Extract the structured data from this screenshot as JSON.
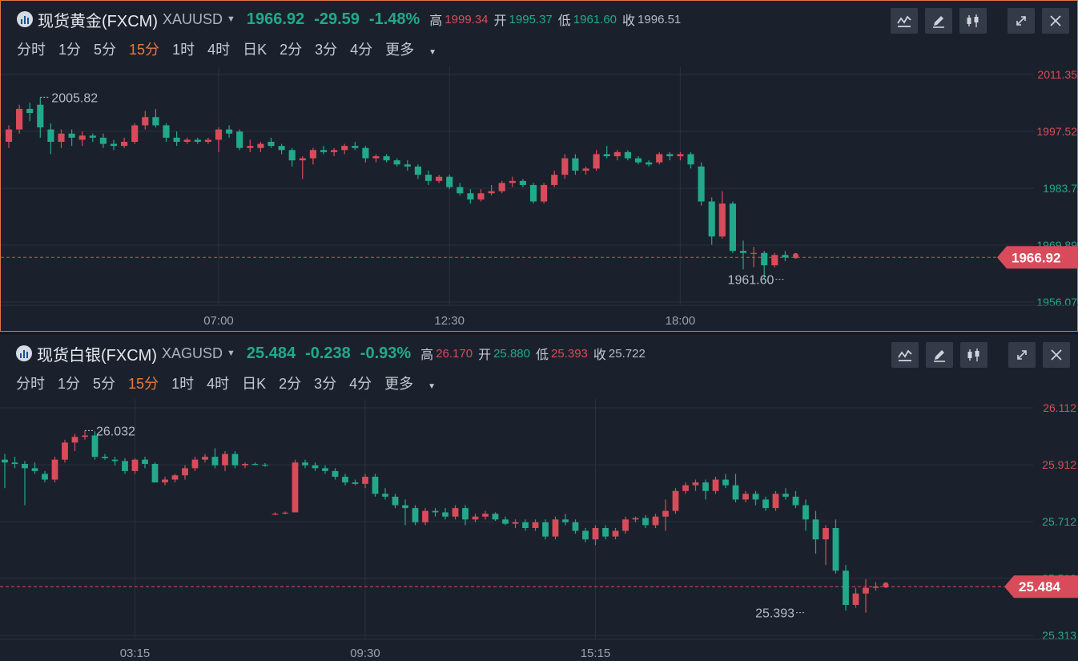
{
  "colors": {
    "up": "#d94b5a",
    "down": "#22a98b",
    "grid": "#2a313c",
    "panel": "#1b212c",
    "accent": "#e67a3f"
  },
  "gold": {
    "name": "现货黄金(FXCM)",
    "code": "XAUUSD",
    "caret": "▼",
    "price": "1966.92",
    "change": "-29.59",
    "change_pct": "-1.48%",
    "high_label": "高",
    "high": "1999.34",
    "open_label": "开",
    "open": "1995.37",
    "low_label": "低",
    "low": "1961.60",
    "close_label": "收",
    "close": "1996.51",
    "intervals": [
      "分时",
      "1分",
      "5分",
      "15分",
      "1时",
      "4时",
      "日K",
      "2分",
      "3分",
      "4分"
    ],
    "active_interval": "15分",
    "more": "更多",
    "tools": [
      "indicator-icon",
      "draw-icon",
      "candlestick-icon",
      "expand-icon",
      "close-icon"
    ]
  },
  "silver": {
    "name": "现货白银(FXCM)",
    "code": "XAGUSD",
    "caret": "▼",
    "price": "25.484",
    "change": "-0.238",
    "change_pct": "-0.93%",
    "high_label": "高",
    "high": "26.170",
    "open_label": "开",
    "open": "25.880",
    "low_label": "低",
    "low": "25.393",
    "close_label": "收",
    "close": "25.722",
    "intervals": [
      "分时",
      "1分",
      "5分",
      "15分",
      "1时",
      "4时",
      "日K",
      "2分",
      "3分",
      "4分"
    ],
    "active_interval": "15分",
    "more": "更多",
    "tools": [
      "indicator-icon",
      "draw-icon",
      "candlestick-icon",
      "expand-icon",
      "close-icon"
    ]
  },
  "chart_data": [
    {
      "type": "candlestick",
      "symbol": "XAUUSD",
      "interval": "15分",
      "y_ticks": [
        {
          "label": "2011.35",
          "value": 2011.35,
          "color": "#d94b5a"
        },
        {
          "label": "1997.52",
          "value": 1997.52,
          "color": "#d94b5a"
        },
        {
          "label": "1983.7",
          "value": 1983.7,
          "color": "#22a98b"
        },
        {
          "label": "1969.89",
          "value": 1969.89,
          "color": "#22a98b"
        },
        {
          "label": "1956.07",
          "value": 1956.07,
          "color": "#22a98b"
        }
      ],
      "x_ticks": [
        "07:00",
        "12:30",
        "18:00"
      ],
      "x_tick_candle_index": [
        20,
        42,
        64
      ],
      "last_price": 1966.92,
      "last_price_label": "1966.92",
      "annotations": [
        {
          "label": "2005.82",
          "candle_index": 3,
          "value": 2005.82
        },
        {
          "label": "1961.60",
          "candle_index": 74,
          "value": 1961.6
        }
      ],
      "candles": [
        [
          1995.0,
          1999.0,
          1993.5,
          1998.0
        ],
        [
          1998.0,
          2004.0,
          1997.0,
          2003.0
        ],
        [
          2003.0,
          2004.5,
          2000.0,
          2002.0
        ],
        [
          2004.0,
          2005.82,
          1996.0,
          1998.5
        ],
        [
          1998.0,
          1999.5,
          1992.0,
          1995.0
        ],
        [
          1995.0,
          1998.0,
          1993.5,
          1997.0
        ],
        [
          1997.0,
          1998.0,
          1994.0,
          1996.0
        ],
        [
          1995.5,
          1997.5,
          1994.0,
          1996.5
        ],
        [
          1996.5,
          1997.0,
          1995.0,
          1996.0
        ],
        [
          1996.0,
          1997.0,
          1993.5,
          1994.5
        ],
        [
          1994.5,
          1995.5,
          1993.0,
          1994.0
        ],
        [
          1994.0,
          1996.0,
          1993.5,
          1995.0
        ],
        [
          1995.0,
          1999.5,
          1994.5,
          1999.0
        ],
        [
          1999.0,
          2002.5,
          1998.0,
          2001.0
        ],
        [
          2001.0,
          2003.0,
          1998.5,
          1999.0
        ],
        [
          1999.0,
          1999.5,
          1995.0,
          1996.0
        ],
        [
          1996.0,
          1997.5,
          1994.0,
          1995.0
        ],
        [
          1995.0,
          1996.0,
          1994.5,
          1995.5
        ],
        [
          1995.5,
          1996.0,
          1994.5,
          1995.0
        ],
        [
          1995.0,
          1996.0,
          1994.5,
          1995.5
        ],
        [
          1995.5,
          1998.5,
          1992.5,
          1998.0
        ],
        [
          1998.0,
          1999.0,
          1996.0,
          1997.0
        ],
        [
          1997.5,
          1998.0,
          1993.0,
          1993.5
        ],
        [
          1993.5,
          1995.5,
          1992.5,
          1994.0
        ],
        [
          1993.5,
          1995.0,
          1992.5,
          1994.5
        ],
        [
          1995.0,
          1996.0,
          1993.5,
          1994.0
        ],
        [
          1994.0,
          1994.5,
          1992.0,
          1993.0
        ],
        [
          1993.0,
          1993.5,
          1989.0,
          1990.5
        ],
        [
          1990.5,
          1991.5,
          1986.0,
          1991.0
        ],
        [
          1991.0,
          1993.5,
          1989.5,
          1993.0
        ],
        [
          1993.0,
          1994.0,
          1992.0,
          1992.5
        ],
        [
          1992.5,
          1993.5,
          1991.5,
          1993.0
        ],
        [
          1993.0,
          1994.5,
          1992.0,
          1994.0
        ],
        [
          1994.0,
          1995.0,
          1993.0,
          1993.5
        ],
        [
          1993.5,
          1994.0,
          1990.0,
          1991.0
        ],
        [
          1991.0,
          1992.0,
          1990.0,
          1991.5
        ],
        [
          1991.5,
          1992.0,
          1990.0,
          1990.5
        ],
        [
          1990.5,
          1991.0,
          1989.0,
          1989.5
        ],
        [
          1989.5,
          1990.5,
          1988.0,
          1989.0
        ],
        [
          1989.0,
          1989.5,
          1986.0,
          1987.0
        ],
        [
          1987.0,
          1988.0,
          1984.5,
          1985.5
        ],
        [
          1985.5,
          1987.0,
          1985.0,
          1986.5
        ],
        [
          1986.5,
          1987.0,
          1983.5,
          1984.0
        ],
        [
          1984.0,
          1985.0,
          1982.0,
          1982.5
        ],
        [
          1982.5,
          1983.5,
          1980.0,
          1981.0
        ],
        [
          1981.0,
          1983.5,
          1980.5,
          1982.5
        ],
        [
          1982.5,
          1984.5,
          1982.0,
          1983.0
        ],
        [
          1983.0,
          1985.5,
          1982.5,
          1985.0
        ],
        [
          1985.0,
          1986.5,
          1984.0,
          1985.5
        ],
        [
          1985.5,
          1986.0,
          1984.0,
          1984.5
        ],
        [
          1984.5,
          1985.0,
          1980.0,
          1980.5
        ],
        [
          1980.5,
          1985.0,
          1980.0,
          1984.5
        ],
        [
          1984.5,
          1988.0,
          1984.0,
          1987.0
        ],
        [
          1987.0,
          1992.0,
          1986.0,
          1991.0
        ],
        [
          1991.0,
          1992.0,
          1987.0,
          1988.0
        ],
        [
          1988.0,
          1989.0,
          1987.0,
          1988.5
        ],
        [
          1988.5,
          1993.0,
          1988.0,
          1992.0
        ],
        [
          1992.0,
          1994.0,
          1991.0,
          1991.5
        ],
        [
          1991.5,
          1993.0,
          1990.5,
          1992.5
        ],
        [
          1992.5,
          1993.0,
          1990.5,
          1991.0
        ],
        [
          1991.0,
          1991.5,
          1989.5,
          1990.0
        ],
        [
          1990.0,
          1990.5,
          1989.0,
          1989.5
        ],
        [
          1990.0,
          1992.5,
          1989.5,
          1992.0
        ],
        [
          1992.0,
          1992.5,
          1990.5,
          1991.5
        ],
        [
          1991.5,
          1992.5,
          1990.5,
          1992.0
        ],
        [
          1992.0,
          1992.5,
          1988.5,
          1989.5
        ],
        [
          1989.0,
          1990.0,
          1979.5,
          1980.5
        ],
        [
          1980.5,
          1981.5,
          1970.0,
          1972.0
        ],
        [
          1972.0,
          1983.0,
          1971.5,
          1980.0
        ],
        [
          1980.0,
          1980.5,
          1968.0,
          1968.5
        ],
        [
          1968.5,
          1971.0,
          1964.0,
          1968.0
        ],
        [
          1968.0,
          1969.5,
          1964.5,
          1968.0
        ],
        [
          1968.0,
          1968.5,
          1961.6,
          1965.0
        ],
        [
          1965.0,
          1968.0,
          1964.5,
          1967.5
        ],
        [
          1967.5,
          1968.5,
          1966.0,
          1966.92
        ]
      ]
    },
    {
      "type": "candlestick",
      "symbol": "XAGUSD",
      "interval": "15分",
      "y_ticks": [
        {
          "label": "26.112",
          "value": 26.112,
          "color": "#d94b5a"
        },
        {
          "label": "25.912",
          "value": 25.912,
          "color": "#d94b5a"
        },
        {
          "label": "25.712",
          "value": 25.712,
          "color": "#22a98b"
        },
        {
          "label": "25.513",
          "value": 25.513,
          "color": "#22a98b"
        },
        {
          "label": "25.313",
          "value": 25.313,
          "color": "#22a98b"
        }
      ],
      "x_ticks": [
        "03:15",
        "09:30",
        "15:15"
      ],
      "x_tick_candle_index": [
        13,
        36,
        59
      ],
      "last_price": 25.484,
      "last_price_label": "25.484",
      "annotations": [
        {
          "label": "26.032",
          "candle_index": 8,
          "value": 26.032
        },
        {
          "label": "25.393",
          "candle_index": 80,
          "value": 25.393
        }
      ],
      "candles": [
        [
          25.93,
          25.95,
          25.83,
          25.92
        ],
        [
          25.92,
          25.94,
          25.9,
          25.915
        ],
        [
          25.915,
          25.925,
          25.77,
          25.9
        ],
        [
          25.9,
          25.92,
          25.88,
          25.89
        ],
        [
          25.88,
          25.89,
          25.85,
          25.86
        ],
        [
          25.86,
          25.94,
          25.85,
          25.93
        ],
        [
          25.93,
          26.0,
          25.92,
          25.99
        ],
        [
          25.99,
          26.02,
          25.96,
          26.01
        ],
        [
          26.01,
          26.032,
          26.0,
          26.015
        ],
        [
          26.015,
          26.03,
          25.93,
          25.94
        ],
        [
          25.94,
          25.95,
          25.93,
          25.935
        ],
        [
          25.93,
          25.94,
          25.91,
          25.925
        ],
        [
          25.925,
          25.935,
          25.88,
          25.89
        ],
        [
          25.89,
          25.935,
          25.88,
          25.93
        ],
        [
          25.93,
          25.94,
          25.9,
          25.915
        ],
        [
          25.915,
          25.92,
          25.85,
          25.85
        ],
        [
          25.85,
          25.87,
          25.84,
          25.86
        ],
        [
          25.86,
          25.88,
          25.85,
          25.875
        ],
        [
          25.875,
          25.91,
          25.86,
          25.9
        ],
        [
          25.9,
          25.94,
          25.89,
          25.93
        ],
        [
          25.93,
          25.95,
          25.92,
          25.94
        ],
        [
          25.94,
          25.97,
          25.9,
          25.91
        ],
        [
          25.91,
          25.96,
          25.89,
          25.95
        ],
        [
          25.95,
          25.96,
          25.9,
          25.91
        ],
        [
          25.91,
          25.92,
          25.9,
          25.915
        ],
        [
          25.915,
          25.92,
          25.91,
          25.912
        ],
        [
          25.912,
          25.918,
          25.905,
          25.91
        ],
        [
          25.74,
          25.745,
          25.735,
          25.74
        ],
        [
          25.742,
          25.748,
          25.738,
          25.744
        ],
        [
          25.745,
          25.93,
          25.745,
          25.92
        ],
        [
          25.92,
          25.93,
          25.9,
          25.91
        ],
        [
          25.91,
          25.92,
          25.89,
          25.9
        ],
        [
          25.9,
          25.91,
          25.88,
          25.89
        ],
        [
          25.89,
          25.9,
          25.86,
          25.87
        ],
        [
          25.87,
          25.88,
          25.84,
          25.85
        ],
        [
          25.85,
          25.86,
          25.84,
          25.845
        ],
        [
          25.845,
          25.88,
          25.83,
          25.87
        ],
        [
          25.87,
          25.88,
          25.8,
          25.81
        ],
        [
          25.81,
          25.83,
          25.79,
          25.8
        ],
        [
          25.8,
          25.81,
          25.76,
          25.77
        ],
        [
          25.77,
          25.79,
          25.7,
          25.76
        ],
        [
          25.76,
          25.77,
          25.7,
          25.71
        ],
        [
          25.71,
          25.76,
          25.7,
          25.75
        ],
        [
          25.75,
          25.76,
          25.73,
          25.745
        ],
        [
          25.745,
          25.76,
          25.72,
          25.73
        ],
        [
          25.73,
          25.77,
          25.72,
          25.76
        ],
        [
          25.76,
          25.77,
          25.7,
          25.72
        ],
        [
          25.72,
          25.74,
          25.71,
          25.73
        ],
        [
          25.73,
          25.75,
          25.72,
          25.74
        ],
        [
          25.74,
          25.745,
          25.715,
          25.72
        ],
        [
          25.72,
          25.73,
          25.7,
          25.705
        ],
        [
          25.705,
          25.72,
          25.69,
          25.71
        ],
        [
          25.71,
          25.72,
          25.68,
          25.69
        ],
        [
          25.69,
          25.72,
          25.68,
          25.71
        ],
        [
          25.71,
          25.72,
          25.65,
          25.66
        ],
        [
          25.66,
          25.73,
          25.65,
          25.72
        ],
        [
          25.72,
          25.74,
          25.7,
          25.71
        ],
        [
          25.71,
          25.72,
          25.67,
          25.68
        ],
        [
          25.68,
          25.69,
          25.64,
          25.65
        ],
        [
          25.65,
          25.7,
          25.63,
          25.69
        ],
        [
          25.69,
          25.7,
          25.65,
          25.66
        ],
        [
          25.66,
          25.69,
          25.65,
          25.68
        ],
        [
          25.68,
          25.73,
          25.67,
          25.72
        ],
        [
          25.72,
          25.73,
          25.71,
          25.725
        ],
        [
          25.725,
          25.735,
          25.69,
          25.7
        ],
        [
          25.7,
          25.74,
          25.69,
          25.73
        ],
        [
          25.73,
          25.79,
          25.68,
          25.75
        ],
        [
          25.75,
          25.83,
          25.74,
          25.82
        ],
        [
          25.82,
          25.85,
          25.81,
          25.84
        ],
        [
          25.84,
          25.86,
          25.82,
          25.85
        ],
        [
          25.85,
          25.86,
          25.79,
          25.82
        ],
        [
          25.82,
          25.87,
          25.81,
          25.86
        ],
        [
          25.86,
          25.88,
          25.83,
          25.84
        ],
        [
          25.84,
          25.88,
          25.78,
          25.79
        ],
        [
          25.79,
          25.82,
          25.78,
          25.81
        ],
        [
          25.81,
          25.82,
          25.77,
          25.79
        ],
        [
          25.79,
          25.8,
          25.75,
          25.76
        ],
        [
          25.76,
          25.82,
          25.75,
          25.81
        ],
        [
          25.81,
          25.83,
          25.79,
          25.8
        ],
        [
          25.8,
          25.82,
          25.76,
          25.77
        ],
        [
          25.77,
          25.79,
          25.68,
          25.72
        ],
        [
          25.72,
          25.75,
          25.6,
          25.65
        ],
        [
          25.65,
          25.7,
          25.56,
          25.69
        ],
        [
          25.69,
          25.72,
          25.53,
          25.54
        ],
        [
          25.54,
          25.56,
          25.4,
          25.42
        ],
        [
          25.42,
          25.48,
          25.41,
          25.46
        ],
        [
          25.46,
          25.51,
          25.393,
          25.48
        ],
        [
          25.48,
          25.5,
          25.47,
          25.484
        ]
      ]
    }
  ]
}
